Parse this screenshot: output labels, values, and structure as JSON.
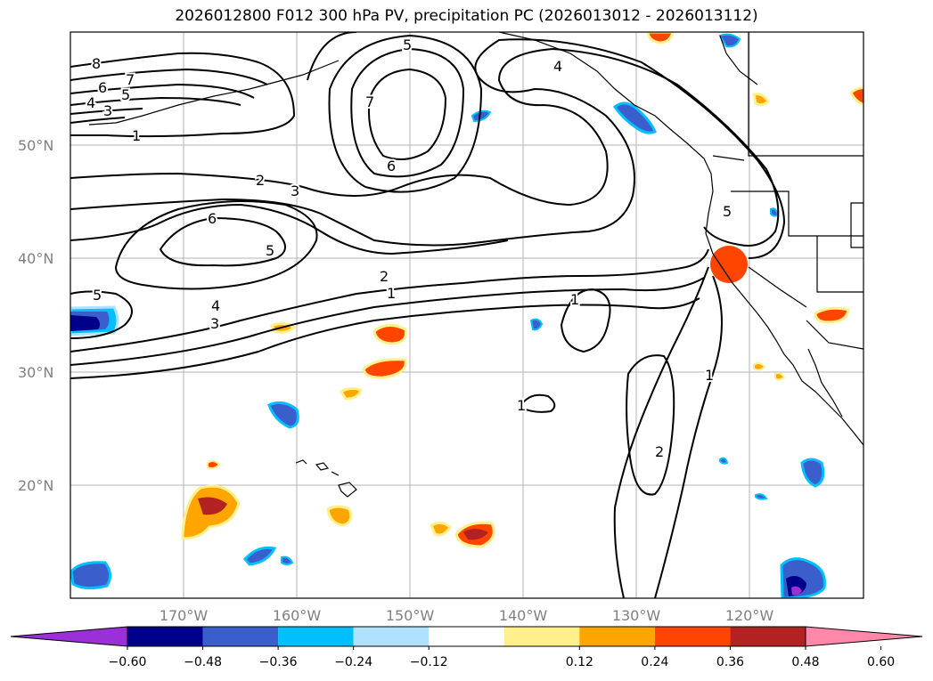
{
  "title": "2026012800 F012 300 hPa PV, precipitation PC (2026013012 - 2026013112)",
  "latitude_labels": [
    "50°N",
    "40°N",
    "30°N",
    "20°N"
  ],
  "longitude_labels": [
    "170°W",
    "160°W",
    "150°W",
    "140°W",
    "130°W",
    "120°W"
  ],
  "contour_labels": [
    "8",
    "7",
    "6",
    "5",
    "4",
    "3",
    "1",
    "2",
    "3",
    "6",
    "5",
    "5",
    "4",
    "3",
    "2",
    "1",
    "7",
    "6",
    "5",
    "4",
    "5",
    "1",
    "1",
    "1",
    "2"
  ],
  "colorbar": {
    "tick_labels": [
      "−0.60",
      "−0.48",
      "−0.36",
      "−0.24",
      "−0.12",
      "0.12",
      "0.24",
      "0.36",
      "0.48",
      "0.60"
    ],
    "colors": [
      "#9b30d9",
      "#00008b",
      "#3a5fcd",
      "#00bfff",
      "#b0e2ff",
      "#ffffff",
      "#fff08c",
      "#ffa500",
      "#ff4500",
      "#b22222",
      "#ff88aa"
    ]
  }
}
